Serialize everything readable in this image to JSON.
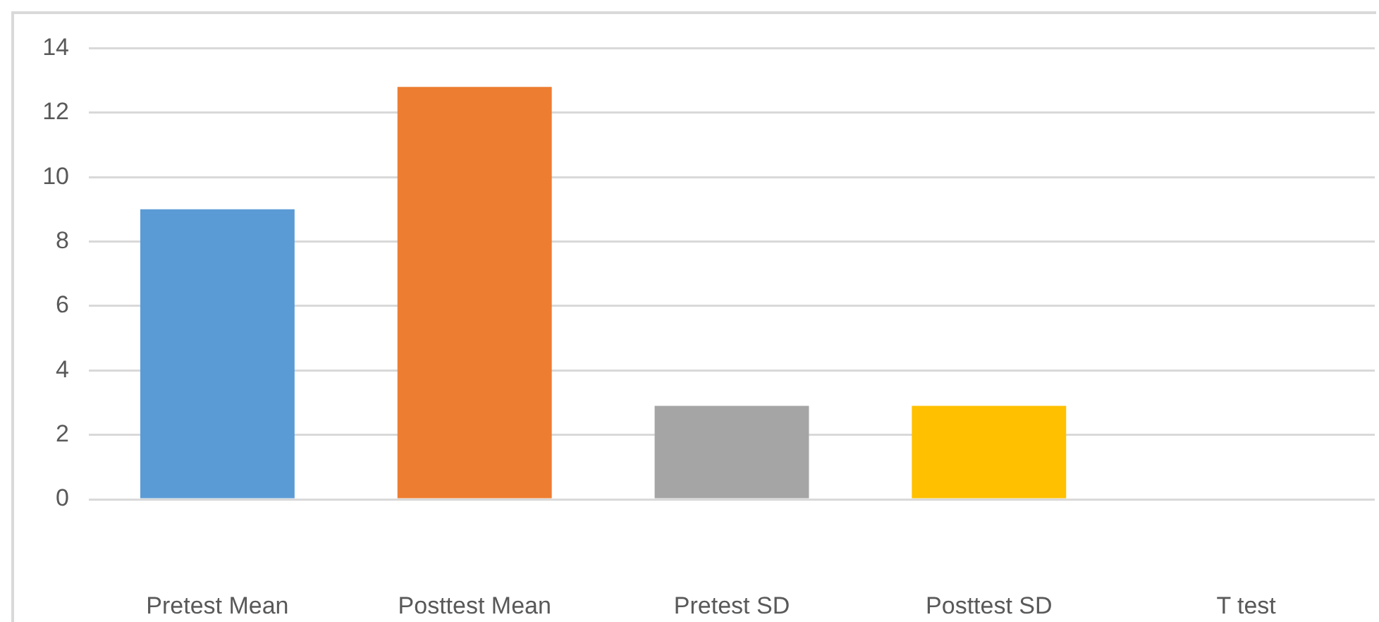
{
  "chart_data": {
    "type": "bar",
    "categories": [
      "Pretest Mean",
      "Posttest Mean",
      "Pretest SD",
      "Posttest SD",
      "T test"
    ],
    "values": [
      9.0,
      12.8,
      2.9,
      2.9,
      0
    ],
    "colors": [
      "#5b9bd5",
      "#ed7d31",
      "#a5a5a5",
      "#ffc000",
      "#4472c4"
    ],
    "ylim": [
      0,
      14
    ],
    "yticks": [
      0,
      2,
      4,
      6,
      8,
      10,
      12,
      14
    ],
    "grid": "y",
    "legend": false
  }
}
